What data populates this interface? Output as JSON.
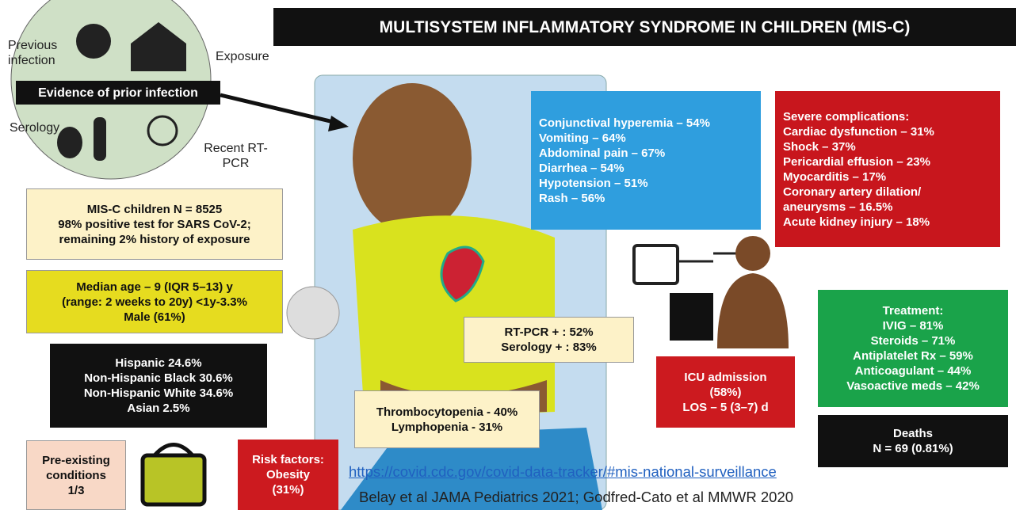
{
  "title": "MULTISYSTEM INFLAMMATORY SYNDROME IN CHILDREN (MIS-C)",
  "prior_infection": {
    "label": "Evidence of prior infection",
    "icons": [
      "Previous infection",
      "Exposure",
      "Serology",
      "Recent RT-PCR"
    ]
  },
  "boxes": {
    "cohort": [
      "MIS-C children N = 8525",
      "98% positive test for SARS CoV-2;",
      "remaining 2% history of exposure"
    ],
    "age": [
      "Median age – 9 (IQR 5–13) y",
      "(range: 2 weeks to 20y) <1y-3.3%",
      "Male (61%)"
    ],
    "ethnicity": [
      "Hispanic 24.6%",
      "Non-Hispanic Black 30.6%",
      "Non-Hispanic White 34.6%",
      "Asian 2.5%"
    ],
    "preexisting": [
      "Pre-existing",
      "conditions",
      "1/3"
    ],
    "risk": [
      "Risk factors:",
      "Obesity",
      "(31%)"
    ],
    "symptoms": [
      "Conjunctival hyperemia – 54%",
      "Vomiting – 64%",
      "Abdominal pain – 67%",
      "Diarrhea – 54%",
      "Hypotension – 51%",
      "Rash – 56%"
    ],
    "complications": [
      "Severe complications:",
      "Cardiac dysfunction – 31%",
      "Shock – 37%",
      "Pericardial effusion – 23%",
      "Myocarditis – 17%",
      "Coronary artery dilation/",
      "aneurysms – 16.5%",
      "Acute kidney injury – 18%"
    ],
    "tests": [
      "RT-PCR + : 52%",
      "Serology + : 83%"
    ],
    "labs": [
      "Thrombocytopenia - 40%",
      "Lymphopenia - 31%"
    ],
    "icu": [
      "ICU admission",
      "(58%)",
      "LOS – 5 (3–7) d"
    ],
    "treatment": [
      "Treatment:",
      "IVIG – 81%",
      "Steroids – 71%",
      "Antiplatelet Rx – 59%",
      "Anticoagulant – 44%",
      "Vasoactive meds – 42%"
    ],
    "deaths": [
      "Deaths",
      "N = 69 (0.81%)"
    ]
  },
  "link": "https://covid.cdc.gov/covid-data-tracker/#mis-national-surveillance",
  "citation": "Belay et al JAMA Pediatrics 2021; Godfred-Cato et al MMWR 2020"
}
